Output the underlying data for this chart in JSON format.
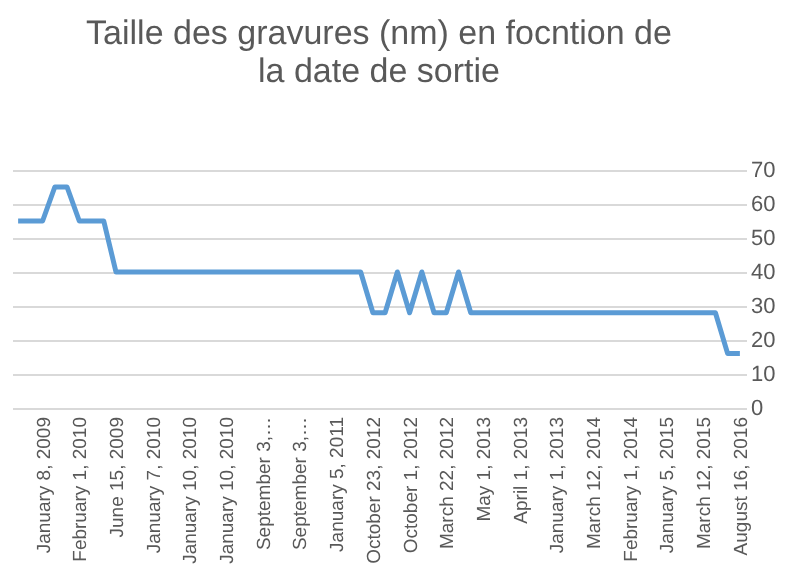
{
  "chart_data": {
    "type": "line",
    "title": "Taille des gravures (nm) en focntion de la date de sortie",
    "categories": [
      null,
      null,
      "January 8, 2009",
      null,
      null,
      "February 1, 2010",
      null,
      null,
      "June 15, 2009",
      null,
      null,
      "January 7, 2010",
      null,
      null,
      "January 10, 2010",
      null,
      null,
      "January 10, 2010",
      null,
      null,
      "September 3,…",
      null,
      null,
      "September 3,…",
      null,
      null,
      "January 5, 2011",
      null,
      null,
      "October 23, 2012",
      null,
      null,
      "October 1, 2012",
      null,
      null,
      "March 22, 2012",
      null,
      null,
      "May 1, 2013",
      null,
      null,
      "April 1, 2013",
      null,
      null,
      "January 1, 2013",
      null,
      null,
      "March 12, 2014",
      null,
      null,
      "February 1, 2014",
      null,
      null,
      "January 5, 2015",
      null,
      null,
      "March 12, 2015",
      null,
      null,
      "August 16, 2016"
    ],
    "series": [
      {
        "color": "#5b9bd5",
        "values": [
          55,
          55,
          55,
          65,
          65,
          55,
          55,
          55,
          40,
          40,
          40,
          40,
          40,
          40,
          40,
          40,
          40,
          40,
          40,
          40,
          40,
          40,
          40,
          40,
          40,
          40,
          40,
          40,
          40,
          28,
          28,
          40,
          28,
          40,
          28,
          28,
          40,
          28,
          28,
          28,
          28,
          28,
          28,
          28,
          28,
          28,
          28,
          28,
          28,
          28,
          28,
          28,
          28,
          28,
          28,
          28,
          28,
          28,
          16,
          16
        ]
      }
    ],
    "ylim": [
      0,
      70
    ],
    "yticks": [
      0,
      10,
      20,
      30,
      40,
      50,
      60,
      70
    ],
    "grid": "y",
    "line_style": "solid"
  }
}
